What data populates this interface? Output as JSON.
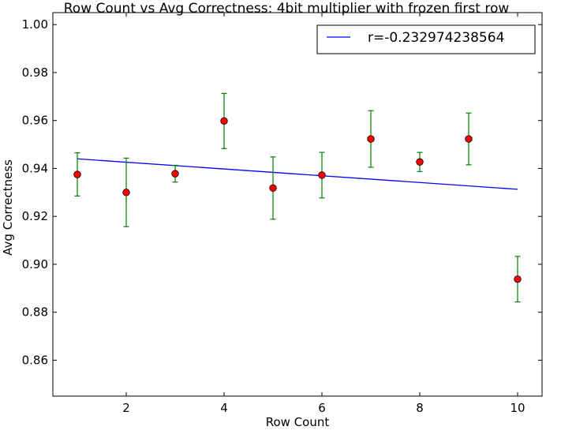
{
  "chart_data": {
    "type": "scatter",
    "title": "Row Count vs Avg Correctness: 4bit multiplier with frozen first row",
    "xlabel": "Row Count",
    "ylabel": "Avg Correctness",
    "xlim": [
      0.5,
      10.5
    ],
    "ylim": [
      0.845,
      1.005
    ],
    "xticks": [
      2,
      4,
      6,
      8,
      10
    ],
    "yticks": [
      0.86,
      0.88,
      0.9,
      0.92,
      0.94,
      0.96,
      0.98,
      1.0
    ],
    "ytick_labels": [
      "0.86",
      "0.88",
      "0.90",
      "0.92",
      "0.94",
      "0.96",
      "0.98",
      "1.00"
    ],
    "grid": false,
    "legend": {
      "placement": "top-right",
      "entries": [
        {
          "label": "r=-0.232974238564",
          "color": "#0000ff",
          "kind": "line"
        }
      ]
    },
    "series": [
      {
        "kind": "errorbar-points",
        "marker_color": "#ff0000",
        "errorbar_color": "#008000",
        "x": [
          1,
          2,
          3,
          4,
          5,
          6,
          7,
          8,
          9,
          10
        ],
        "y": [
          0.9375,
          0.93,
          0.9378,
          0.9598,
          0.9318,
          0.9372,
          0.9523,
          0.9427,
          0.9523,
          0.8938
        ],
        "yerr": [
          0.009,
          0.0143,
          0.0035,
          0.0115,
          0.013,
          0.0095,
          0.0118,
          0.004,
          0.0108,
          0.0095
        ]
      },
      {
        "kind": "fit-line",
        "name": "r=-0.232974238564",
        "color": "#0000ff",
        "x": [
          1,
          10
        ],
        "y": [
          0.944,
          0.9313
        ]
      }
    ]
  }
}
